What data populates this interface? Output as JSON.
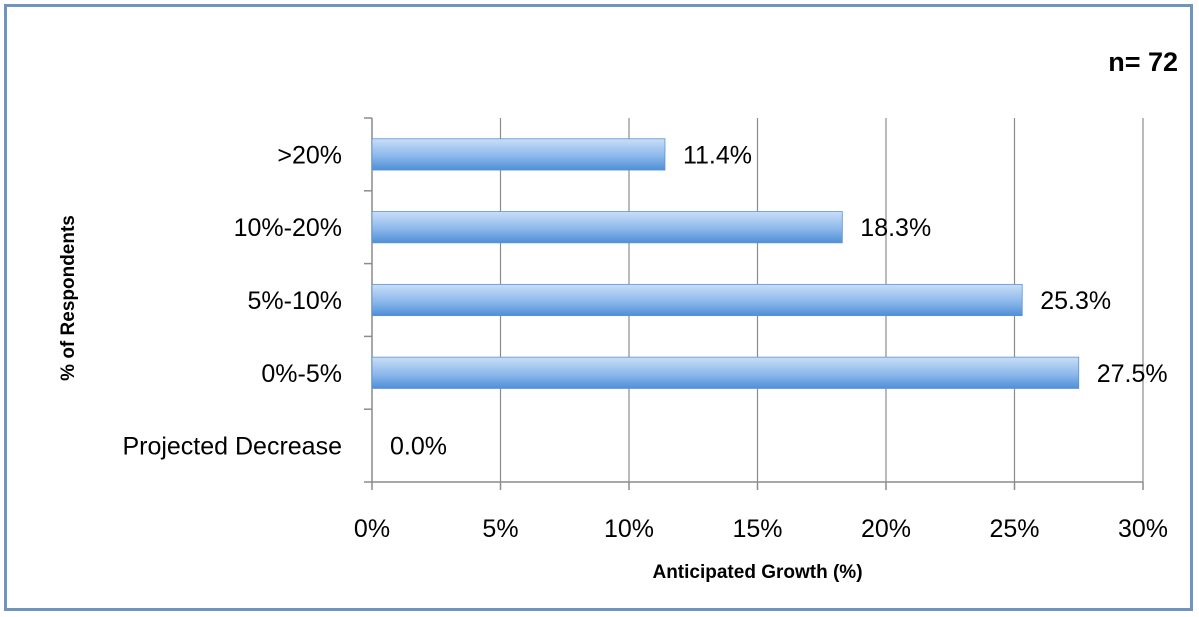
{
  "chart_data": {
    "type": "bar",
    "orientation": "horizontal",
    "categories": [
      ">20%",
      "10%-20%",
      "5%-10%",
      "0%-5%",
      "Projected Decrease"
    ],
    "values": [
      11.4,
      18.3,
      25.3,
      27.5,
      0.0
    ],
    "value_labels": [
      "11.4%",
      "18.3%",
      "25.3%",
      "27.5%",
      "0.0%"
    ],
    "xlabel": "Anticipated Growth (%)",
    "ylabel": "% of Respondents",
    "xlim": [
      0,
      30
    ],
    "xticks": [
      0,
      5,
      10,
      15,
      20,
      25,
      30
    ],
    "xtick_labels": [
      "0%",
      "5%",
      "10%",
      "15%",
      "20%",
      "25%",
      "30%"
    ],
    "annotation": "n= 72",
    "grid": "vertical",
    "legend": "none",
    "colors": {
      "bar_light": "#bcd6f5",
      "bar_dark": "#4f8fd6",
      "grid": "#8c8c8c",
      "border": "#6f95bd"
    }
  }
}
